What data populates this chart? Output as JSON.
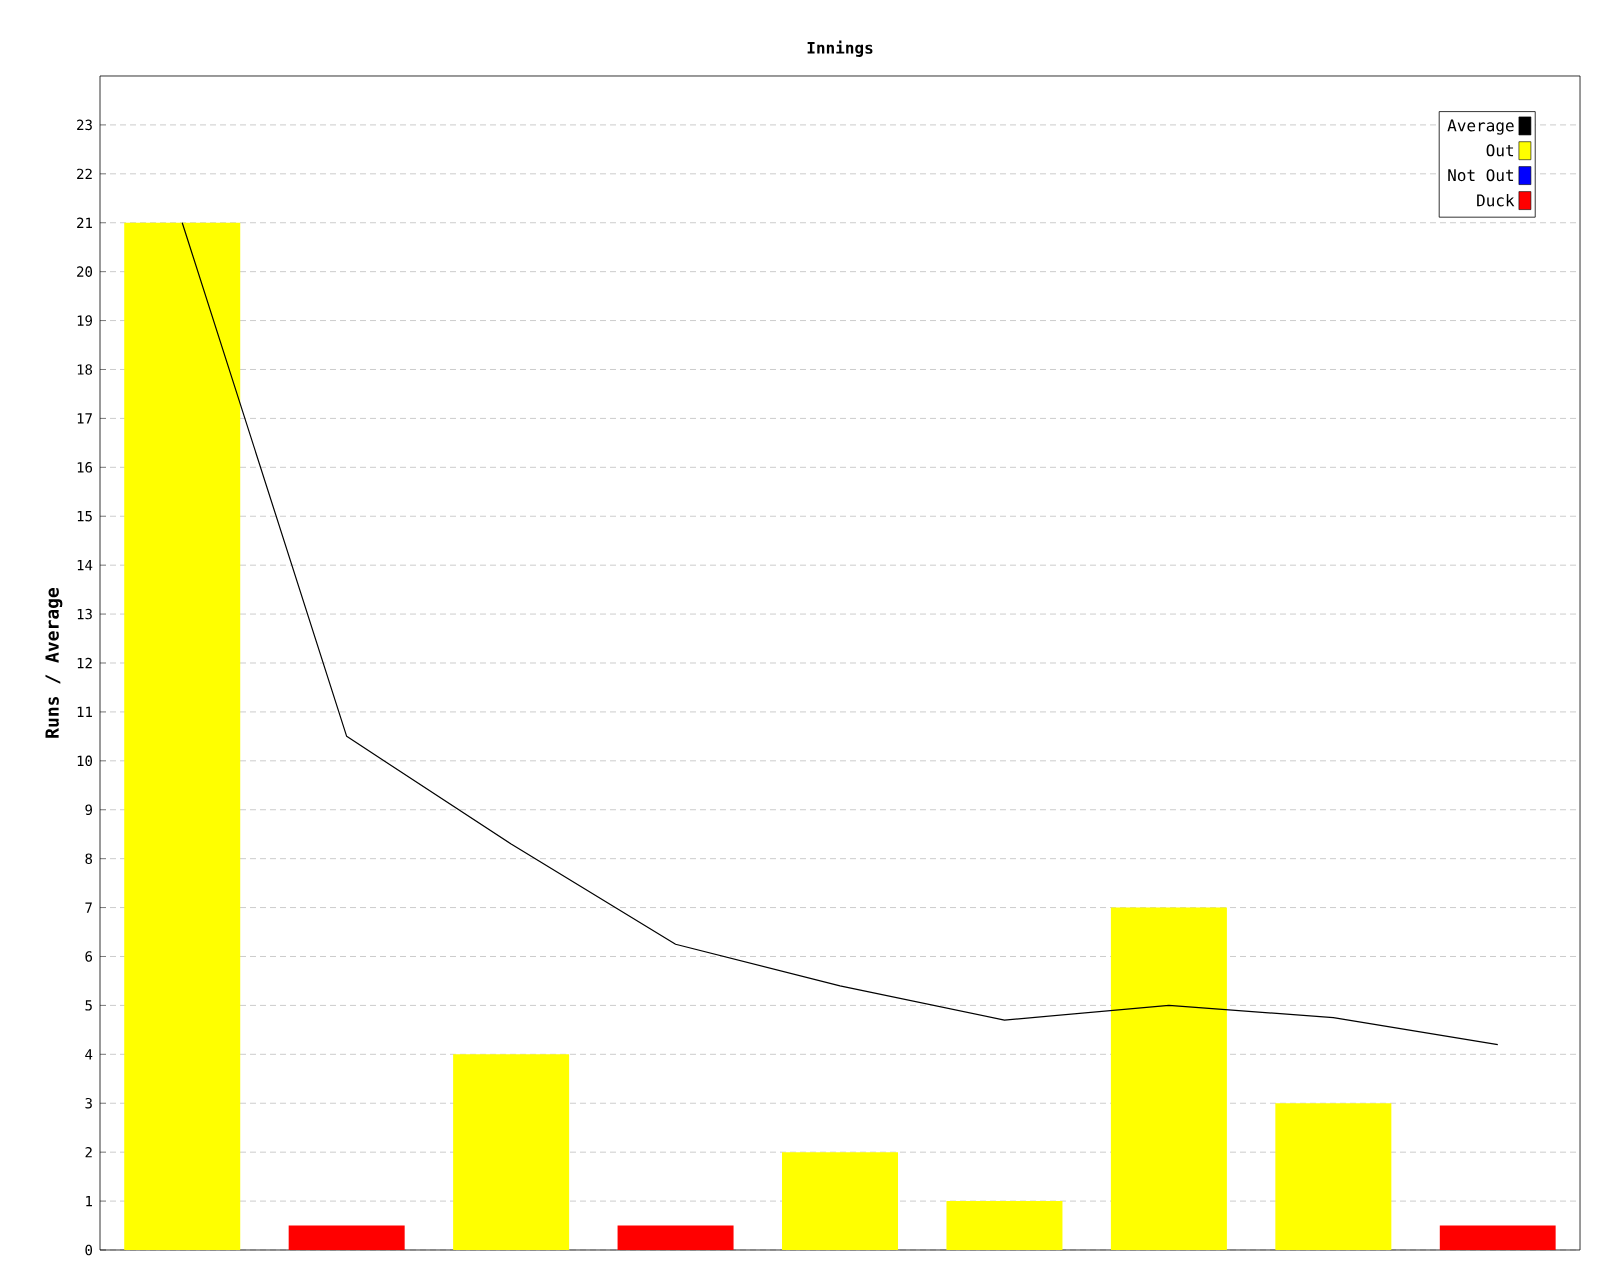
{
  "chart_data": {
    "type": "bar",
    "title": "Innings",
    "ylabel": "Runs / Average",
    "categories": [
      null,
      null,
      null,
      null,
      null,
      null,
      null,
      null,
      null
    ],
    "ylim": [
      0,
      24
    ],
    "yticks": [
      0,
      1,
      2,
      3,
      4,
      5,
      6,
      7,
      8,
      9,
      10,
      11,
      12,
      13,
      14,
      15,
      16,
      17,
      18,
      19,
      20,
      21,
      22,
      23
    ],
    "grid": "y",
    "legend": "top right",
    "tick_labels": "y",
    "series": [
      {
        "name": "Average",
        "type": "line",
        "color": "#000000",
        "values": [
          21,
          10.5,
          8.3,
          6.25,
          5.4,
          4.7,
          5,
          4.75,
          4.2
        ]
      },
      {
        "name": "Out",
        "color": "#ffff00",
        "values": [
          21,
          null,
          4,
          null,
          2,
          1,
          7,
          3,
          null
        ]
      },
      {
        "name": "Not Out",
        "color": "#0000ff",
        "values": [
          null,
          null,
          null,
          null,
          null,
          null,
          null,
          null,
          null
        ]
      },
      {
        "name": "Duck",
        "color": "#ff0000",
        "values": [
          null,
          0.5,
          null,
          0.5,
          null,
          null,
          null,
          null,
          0.5
        ]
      }
    ]
  }
}
